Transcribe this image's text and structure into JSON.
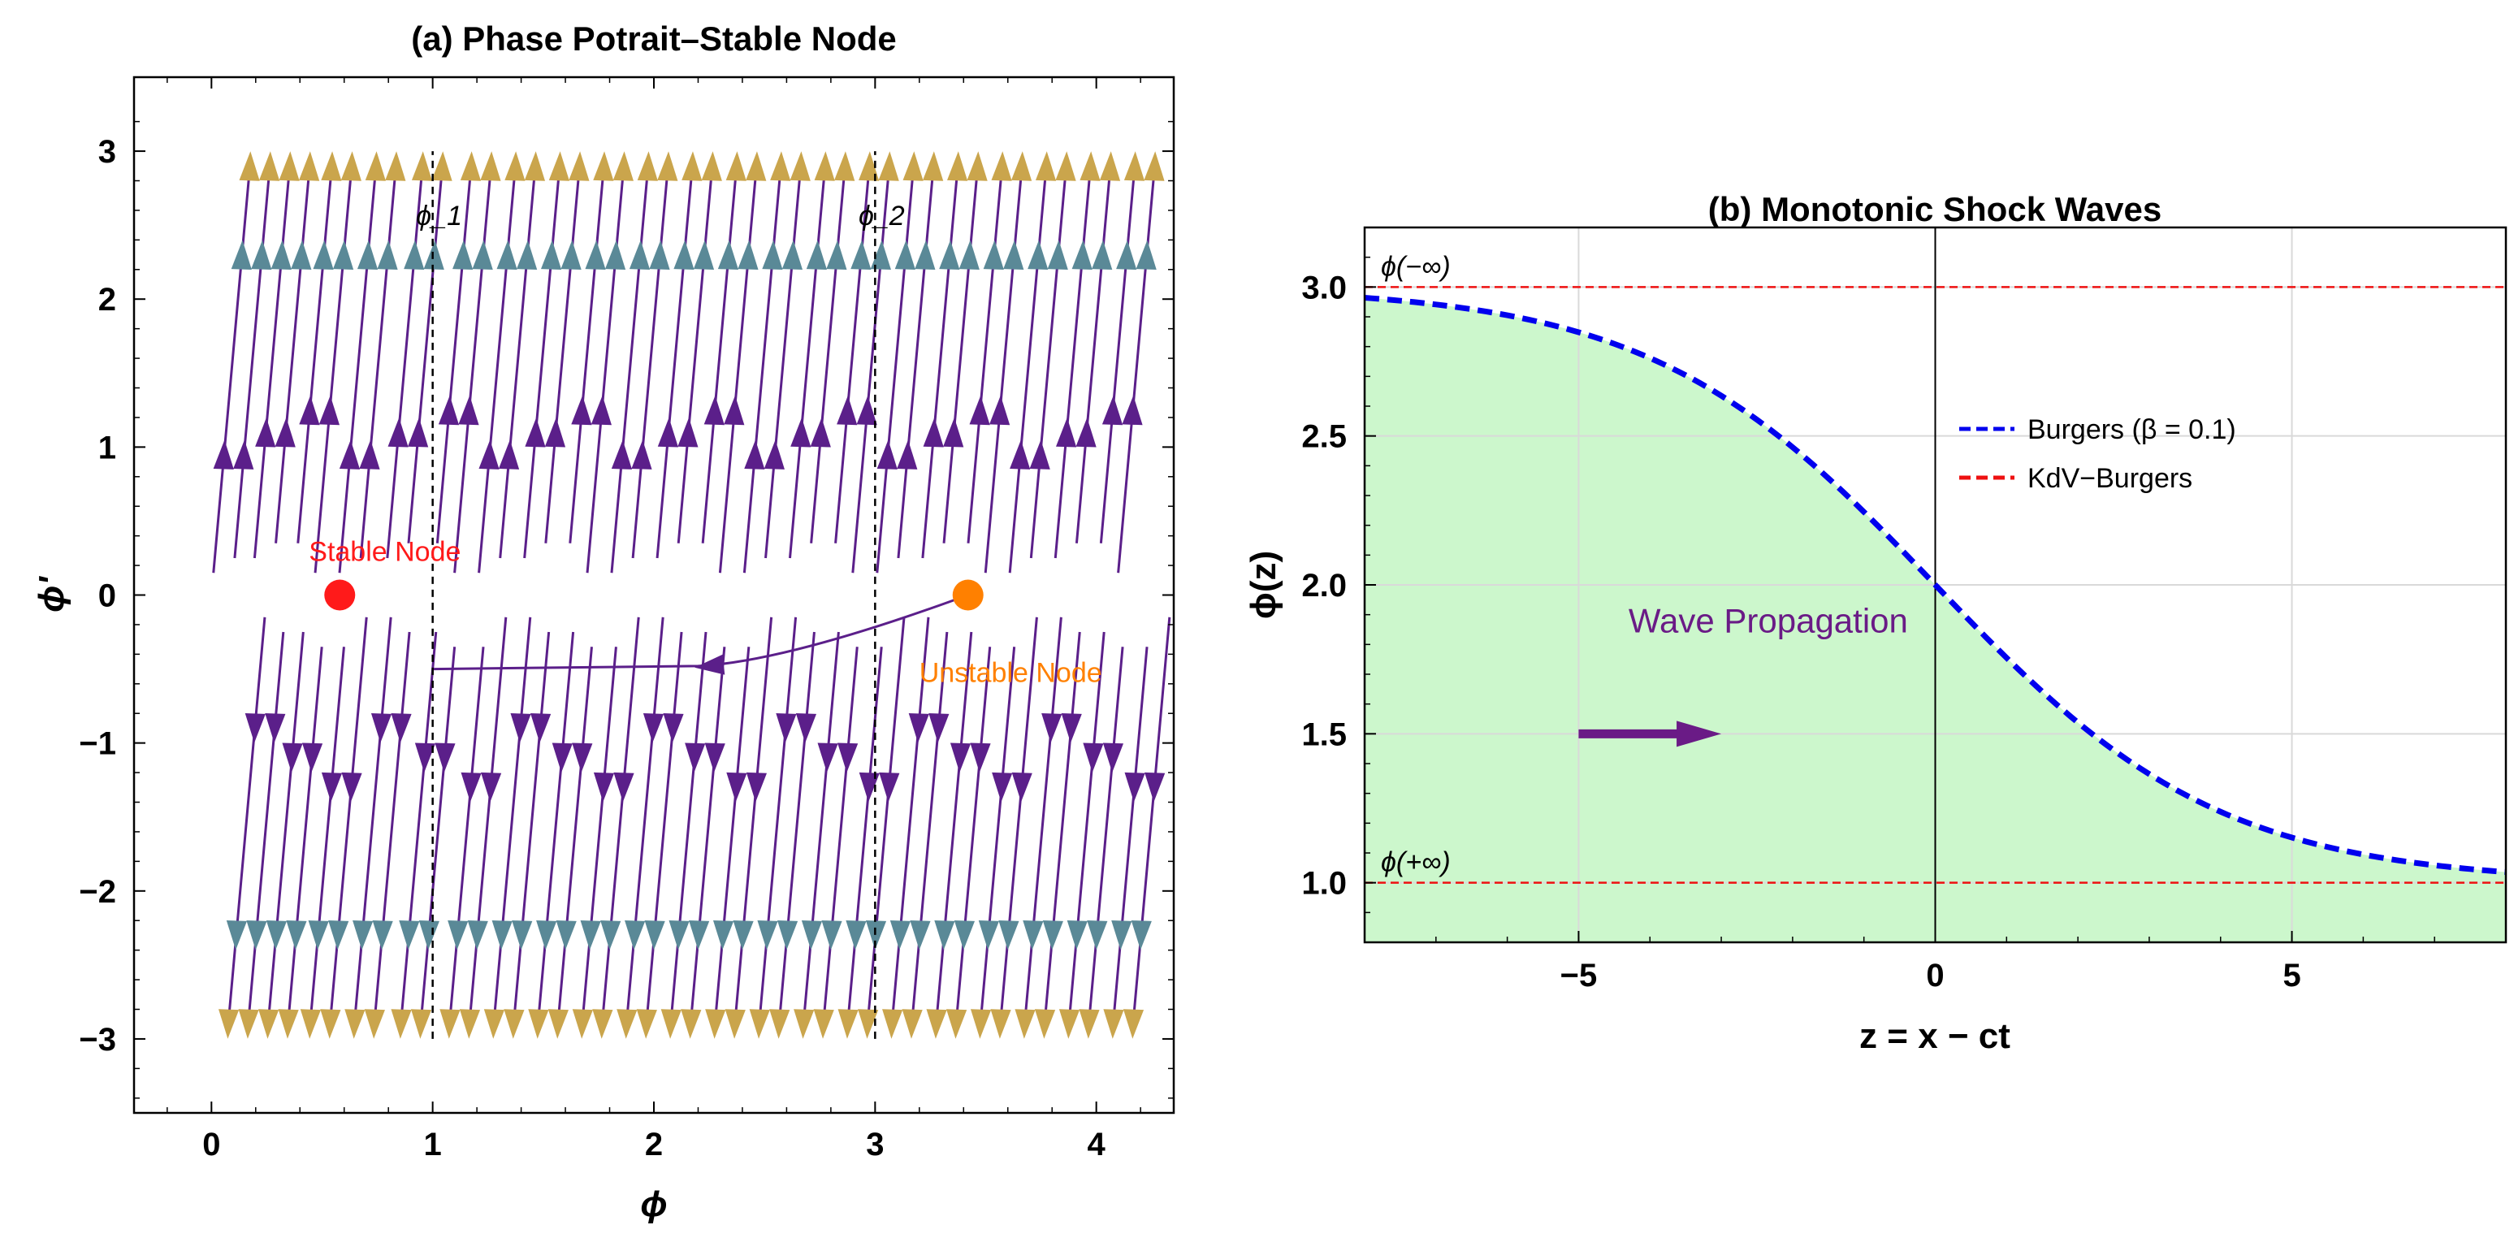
{
  "chart_data": [
    {
      "type": "stream",
      "title": "(a) Phase Potrait–Stable Node",
      "xlabel": "ϕ",
      "ylabel": "ϕ'",
      "xlim": [
        -0.35,
        4.35
      ],
      "ylim": [
        -3.5,
        3.5
      ],
      "xticks": [
        {
          "v": 0,
          "label": "0"
        },
        {
          "v": 1,
          "label": "1"
        },
        {
          "v": 2,
          "label": "2"
        },
        {
          "v": 3,
          "label": "3"
        },
        {
          "v": 4,
          "label": "4"
        }
      ],
      "yticks": [
        {
          "v": -3,
          "label": "−3"
        },
        {
          "v": -2,
          "label": "−2"
        },
        {
          "v": -1,
          "label": "−1"
        },
        {
          "v": 0,
          "label": "0"
        },
        {
          "v": 1,
          "label": "1"
        },
        {
          "v": 2,
          "label": "2"
        },
        {
          "v": 3,
          "label": "3"
        }
      ],
      "vertical_lines": [
        {
          "x": 1,
          "y_range": [
            -3,
            3
          ],
          "label": "ϕ_1",
          "color": "#000000"
        },
        {
          "x": 3,
          "y_range": [
            -3,
            3
          ],
          "label": "ϕ_2",
          "color": "#000000"
        }
      ],
      "critical_points": [
        {
          "name": "stable",
          "x": 0.58,
          "y": 0.0,
          "label": "Stable Node",
          "color": "#ff1a1a"
        },
        {
          "name": "unstable",
          "x": 3.42,
          "y": 0.0,
          "label": "Unstable Node",
          "color": "#ff8000"
        }
      ],
      "stream_columns": [
        0.0,
        0.18,
        0.37,
        0.57,
        0.78,
        1.0,
        1.2,
        1.4,
        1.6,
        1.8,
        2.0,
        2.2,
        2.4,
        2.6,
        2.8,
        3.0,
        3.2,
        3.4,
        3.6,
        3.8,
        4.0
      ],
      "field_colors": {
        "low": "#5b1f8a",
        "mid": "#5aa39a",
        "high": "#e3a63a"
      }
    },
    {
      "type": "line",
      "title": "(b) Monotonic Shock Waves",
      "xlabel": "z = x − ct",
      "ylabel": "ϕ(z)",
      "xlim": [
        -8,
        8
      ],
      "ylim": [
        0.8,
        3.2
      ],
      "xticks": [
        {
          "v": -5,
          "label": "−5"
        },
        {
          "v": 0,
          "label": "0"
        },
        {
          "v": 5,
          "label": "5"
        }
      ],
      "yticks": [
        {
          "v": 1.0,
          "label": "1.0"
        },
        {
          "v": 1.5,
          "label": "1.5"
        },
        {
          "v": 2.0,
          "label": "2.0"
        },
        {
          "v": 2.5,
          "label": "2.5"
        },
        {
          "v": 3.0,
          "label": "3.0"
        }
      ],
      "grid": true,
      "fill_color": "#ccf7cc",
      "series": [
        {
          "name": "Burgers (β = 0.1)",
          "color": "#0000ee",
          "style": "dashed",
          "formula": "2 - tanh(z/4)",
          "x": [
            -8,
            -6,
            -4,
            -2,
            0,
            2,
            4,
            6,
            8
          ],
          "y": [
            2.964,
            2.905,
            2.762,
            2.462,
            2.0,
            1.538,
            1.238,
            1.095,
            1.036
          ]
        },
        {
          "name": "KdV−Burgers",
          "color": "#ee1111",
          "style": "dashed"
        }
      ],
      "horizontal_refs": [
        {
          "y": 3.0,
          "label": "ϕ(−∞)"
        },
        {
          "y": 1.0,
          "label": "ϕ(+∞)"
        }
      ],
      "annotations": [
        {
          "text": "Wave Propagation",
          "x": -4.3,
          "y": 1.84,
          "color": "#6a1b86"
        }
      ],
      "arrow": {
        "from": [
          -5,
          1.5
        ],
        "to": [
          -3,
          1.5
        ],
        "color": "#6a1b86"
      },
      "legend_position": "upper-right"
    }
  ]
}
